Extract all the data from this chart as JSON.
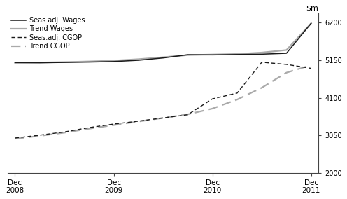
{
  "ylim": [
    2000,
    6450
  ],
  "yticks": [
    2000,
    3050,
    4100,
    5150,
    6200
  ],
  "ytick_labels": [
    "2000",
    "3050",
    "4100",
    "5150",
    "6200"
  ],
  "n_points": 13,
  "x_tick_positions": [
    0,
    4,
    8,
    12
  ],
  "x_tick_labels": [
    "Dec\n2008",
    "Dec\n2009",
    "Dec\n2010",
    "Dec\n2011"
  ],
  "seas_wages": [
    5080,
    5075,
    5085,
    5095,
    5110,
    5145,
    5210,
    5300,
    5295,
    5305,
    5315,
    5340,
    6175
  ],
  "trend_wages": [
    5075,
    5082,
    5095,
    5112,
    5135,
    5175,
    5230,
    5290,
    5305,
    5320,
    5360,
    5430,
    6175
  ],
  "seas_cgop": [
    2980,
    3060,
    3150,
    3270,
    3370,
    3450,
    3540,
    3630,
    4070,
    4230,
    5090,
    5030,
    4920
  ],
  "trend_cgop": [
    2960,
    3040,
    3130,
    3240,
    3340,
    3440,
    3540,
    3640,
    3800,
    4050,
    4380,
    4800,
    5010
  ],
  "seas_wages_color": "#1a1a1a",
  "trend_wages_color": "#aaaaaa",
  "seas_cgop_color": "#1a1a1a",
  "trend_cgop_color": "#aaaaaa",
  "background_color": "#ffffff",
  "legend_entries": [
    "Seas.adj. Wages",
    "Trend Wages",
    "Seas.adj. CGOP",
    "Trend CGOP"
  ]
}
